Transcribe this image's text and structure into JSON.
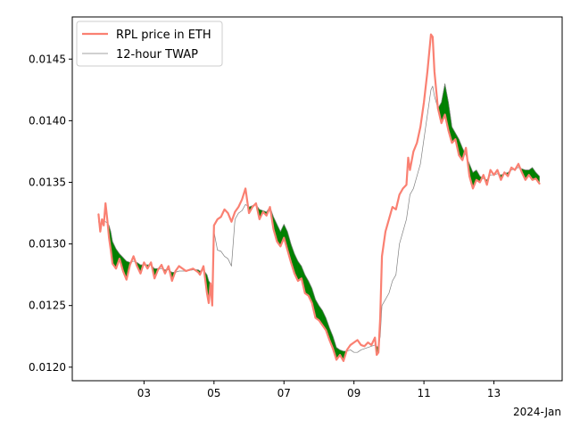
{
  "chart_data": {
    "type": "line",
    "title": "",
    "xlabel": "",
    "ylabel": "",
    "x_offset_label": "2024-Jan",
    "x_domain_days": [
      1.7,
      14.3
    ],
    "xlim_days": [
      0.95,
      14.95
    ],
    "ylim": [
      0.01189,
      0.014842
    ],
    "grid": false,
    "legend_position": "upper left",
    "x_ticks": [
      {
        "day": 3,
        "label": "03"
      },
      {
        "day": 5,
        "label": "05"
      },
      {
        "day": 7,
        "label": "07"
      },
      {
        "day": 9,
        "label": "09"
      },
      {
        "day": 11,
        "label": "11"
      },
      {
        "day": 13,
        "label": "13"
      }
    ],
    "y_ticks": [
      {
        "value": 0.012,
        "label": "0.0120"
      },
      {
        "value": 0.0125,
        "label": "0.0125"
      },
      {
        "value": 0.013,
        "label": "0.0130"
      },
      {
        "value": 0.0135,
        "label": "0.0135"
      },
      {
        "value": 0.014,
        "label": "0.0140"
      },
      {
        "value": 0.0145,
        "label": "0.0145"
      }
    ],
    "fill_color": "#008000",
    "series": [
      {
        "name": "RPL price in ETH",
        "color": "#fa8072",
        "width": 2.2,
        "points": [
          [
            1.7,
            0.01324
          ],
          [
            1.75,
            0.0131
          ],
          [
            1.8,
            0.0132
          ],
          [
            1.85,
            0.01315
          ],
          [
            1.9,
            0.01333
          ],
          [
            1.95,
            0.0132
          ],
          [
            2.0,
            0.01305
          ],
          [
            2.05,
            0.01295
          ],
          [
            2.1,
            0.01284
          ],
          [
            2.2,
            0.0128
          ],
          [
            2.3,
            0.01288
          ],
          [
            2.4,
            0.01278
          ],
          [
            2.5,
            0.01271
          ],
          [
            2.6,
            0.01283
          ],
          [
            2.7,
            0.0129
          ],
          [
            2.8,
            0.01282
          ],
          [
            2.9,
            0.01276
          ],
          [
            3.0,
            0.01285
          ],
          [
            3.1,
            0.0128
          ],
          [
            3.2,
            0.01285
          ],
          [
            3.3,
            0.01272
          ],
          [
            3.4,
            0.01279
          ],
          [
            3.5,
            0.01283
          ],
          [
            3.6,
            0.01276
          ],
          [
            3.7,
            0.01282
          ],
          [
            3.8,
            0.0127
          ],
          [
            3.9,
            0.01278
          ],
          [
            4.0,
            0.01282
          ],
          [
            4.2,
            0.01278
          ],
          [
            4.4,
            0.0128
          ],
          [
            4.55,
            0.01277
          ],
          [
            4.6,
            0.01275
          ],
          [
            4.7,
            0.01282
          ],
          [
            4.8,
            0.0126
          ],
          [
            4.85,
            0.01252
          ],
          [
            4.9,
            0.01268
          ],
          [
            4.95,
            0.0125
          ],
          [
            5.0,
            0.01315
          ],
          [
            5.1,
            0.0132
          ],
          [
            5.2,
            0.01322
          ],
          [
            5.3,
            0.01328
          ],
          [
            5.4,
            0.01325
          ],
          [
            5.5,
            0.01318
          ],
          [
            5.6,
            0.01326
          ],
          [
            5.7,
            0.0133
          ],
          [
            5.8,
            0.01336
          ],
          [
            5.9,
            0.01345
          ],
          [
            6.0,
            0.01325
          ],
          [
            6.1,
            0.0133
          ],
          [
            6.2,
            0.01333
          ],
          [
            6.3,
            0.0132
          ],
          [
            6.4,
            0.01326
          ],
          [
            6.5,
            0.01323
          ],
          [
            6.6,
            0.0133
          ],
          [
            6.7,
            0.01312
          ],
          [
            6.8,
            0.01302
          ],
          [
            6.9,
            0.01298
          ],
          [
            7.0,
            0.01305
          ],
          [
            7.1,
            0.01295
          ],
          [
            7.2,
            0.01285
          ],
          [
            7.3,
            0.01276
          ],
          [
            7.4,
            0.0127
          ],
          [
            7.5,
            0.01272
          ],
          [
            7.6,
            0.0126
          ],
          [
            7.7,
            0.01258
          ],
          [
            7.8,
            0.01252
          ],
          [
            7.9,
            0.0124
          ],
          [
            8.0,
            0.01238
          ],
          [
            8.1,
            0.01234
          ],
          [
            8.2,
            0.0123
          ],
          [
            8.3,
            0.01222
          ],
          [
            8.4,
            0.01215
          ],
          [
            8.5,
            0.01206
          ],
          [
            8.6,
            0.0121
          ],
          [
            8.7,
            0.01205
          ],
          [
            8.8,
            0.01214
          ],
          [
            8.9,
            0.01218
          ],
          [
            9.0,
            0.0122
          ],
          [
            9.1,
            0.01222
          ],
          [
            9.2,
            0.01218
          ],
          [
            9.3,
            0.01217
          ],
          [
            9.4,
            0.0122
          ],
          [
            9.5,
            0.01218
          ],
          [
            9.6,
            0.01224
          ],
          [
            9.65,
            0.0121
          ],
          [
            9.7,
            0.01212
          ],
          [
            9.75,
            0.0124
          ],
          [
            9.8,
            0.0129
          ],
          [
            9.9,
            0.0131
          ],
          [
            10.0,
            0.0132
          ],
          [
            10.1,
            0.0133
          ],
          [
            10.2,
            0.01328
          ],
          [
            10.3,
            0.0134
          ],
          [
            10.4,
            0.01345
          ],
          [
            10.5,
            0.01348
          ],
          [
            10.55,
            0.0137
          ],
          [
            10.6,
            0.0136
          ],
          [
            10.7,
            0.01375
          ],
          [
            10.8,
            0.01382
          ],
          [
            10.9,
            0.01395
          ],
          [
            11.0,
            0.01415
          ],
          [
            11.1,
            0.0144
          ],
          [
            11.2,
            0.0147
          ],
          [
            11.25,
            0.01468
          ],
          [
            11.3,
            0.0144
          ],
          [
            11.4,
            0.0141
          ],
          [
            11.5,
            0.01398
          ],
          [
            11.6,
            0.01405
          ],
          [
            11.7,
            0.01392
          ],
          [
            11.8,
            0.01382
          ],
          [
            11.9,
            0.01385
          ],
          [
            12.0,
            0.01372
          ],
          [
            12.1,
            0.01368
          ],
          [
            12.2,
            0.01378
          ],
          [
            12.3,
            0.01355
          ],
          [
            12.4,
            0.01345
          ],
          [
            12.5,
            0.01352
          ],
          [
            12.6,
            0.0135
          ],
          [
            12.7,
            0.01356
          ],
          [
            12.8,
            0.01348
          ],
          [
            12.9,
            0.0136
          ],
          [
            13.0,
            0.01356
          ],
          [
            13.1,
            0.0136
          ],
          [
            13.2,
            0.01352
          ],
          [
            13.3,
            0.01358
          ],
          [
            13.4,
            0.01355
          ],
          [
            13.5,
            0.01362
          ],
          [
            13.6,
            0.0136
          ],
          [
            13.7,
            0.01365
          ],
          [
            13.8,
            0.01358
          ],
          [
            13.9,
            0.01352
          ],
          [
            14.0,
            0.01356
          ],
          [
            14.1,
            0.01352
          ],
          [
            14.2,
            0.01353
          ],
          [
            14.3,
            0.01349
          ]
        ]
      },
      {
        "name": "12-hour TWAP",
        "color": "#808080",
        "width": 0.7,
        "points": [
          [
            1.7,
            0.01318
          ],
          [
            1.75,
            0.01315
          ],
          [
            1.8,
            0.01316
          ],
          [
            1.85,
            0.01318
          ],
          [
            1.9,
            0.01318
          ],
          [
            1.95,
            0.01317
          ],
          [
            2.0,
            0.01315
          ],
          [
            2.05,
            0.0131
          ],
          [
            2.1,
            0.01302
          ],
          [
            2.2,
            0.01296
          ],
          [
            2.3,
            0.01292
          ],
          [
            2.4,
            0.01289
          ],
          [
            2.5,
            0.01286
          ],
          [
            2.6,
            0.01285
          ],
          [
            2.7,
            0.01286
          ],
          [
            2.8,
            0.01285
          ],
          [
            2.9,
            0.01283
          ],
          [
            3.0,
            0.01283
          ],
          [
            3.1,
            0.01283
          ],
          [
            3.2,
            0.01283
          ],
          [
            3.3,
            0.0128
          ],
          [
            3.4,
            0.0128
          ],
          [
            3.5,
            0.0128
          ],
          [
            3.6,
            0.01279
          ],
          [
            3.7,
            0.01279
          ],
          [
            3.8,
            0.01277
          ],
          [
            3.9,
            0.01277
          ],
          [
            4.0,
            0.01278
          ],
          [
            4.2,
            0.01278
          ],
          [
            4.4,
            0.01279
          ],
          [
            4.55,
            0.01279
          ],
          [
            4.6,
            0.01278
          ],
          [
            4.7,
            0.01279
          ],
          [
            4.8,
            0.01275
          ],
          [
            4.85,
            0.0127
          ],
          [
            4.9,
            0.01268
          ],
          [
            4.95,
            0.01265
          ],
          [
            5.0,
            0.0131
          ],
          [
            5.1,
            0.01295
          ],
          [
            5.2,
            0.01294
          ],
          [
            5.3,
            0.0129
          ],
          [
            5.4,
            0.01288
          ],
          [
            5.5,
            0.01282
          ],
          [
            5.6,
            0.0132
          ],
          [
            5.7,
            0.01325
          ],
          [
            5.8,
            0.01327
          ],
          [
            5.9,
            0.01332
          ],
          [
            6.0,
            0.0133
          ],
          [
            6.1,
            0.01331
          ],
          [
            6.2,
            0.01332
          ],
          [
            6.3,
            0.01328
          ],
          [
            6.4,
            0.01327
          ],
          [
            6.5,
            0.01326
          ],
          [
            6.6,
            0.0133
          ],
          [
            6.7,
            0.01322
          ],
          [
            6.8,
            0.01316
          ],
          [
            6.9,
            0.0131
          ],
          [
            7.0,
            0.01316
          ],
          [
            7.1,
            0.0131
          ],
          [
            7.2,
            0.013
          ],
          [
            7.3,
            0.01292
          ],
          [
            7.4,
            0.01286
          ],
          [
            7.5,
            0.01282
          ],
          [
            7.6,
            0.01275
          ],
          [
            7.7,
            0.0127
          ],
          [
            7.8,
            0.01264
          ],
          [
            7.9,
            0.01255
          ],
          [
            8.0,
            0.0125
          ],
          [
            8.1,
            0.01246
          ],
          [
            8.2,
            0.0124
          ],
          [
            8.3,
            0.01232
          ],
          [
            8.4,
            0.01225
          ],
          [
            8.5,
            0.01216
          ],
          [
            8.6,
            0.01214
          ],
          [
            8.7,
            0.01213
          ],
          [
            8.8,
            0.01213
          ],
          [
            8.9,
            0.01214
          ],
          [
            9.0,
            0.01212
          ],
          [
            9.1,
            0.01212
          ],
          [
            9.2,
            0.01214
          ],
          [
            9.3,
            0.01215
          ],
          [
            9.4,
            0.01216
          ],
          [
            9.5,
            0.01217
          ],
          [
            9.6,
            0.01218
          ],
          [
            9.65,
            0.01217
          ],
          [
            9.7,
            0.01216
          ],
          [
            9.75,
            0.01225
          ],
          [
            9.8,
            0.0125
          ],
          [
            9.9,
            0.01255
          ],
          [
            10.0,
            0.0126
          ],
          [
            10.1,
            0.0127
          ],
          [
            10.2,
            0.01275
          ],
          [
            10.3,
            0.013
          ],
          [
            10.4,
            0.0131
          ],
          [
            10.5,
            0.0132
          ],
          [
            10.55,
            0.0133
          ],
          [
            10.6,
            0.0134
          ],
          [
            10.7,
            0.01345
          ],
          [
            10.8,
            0.01355
          ],
          [
            10.9,
            0.01365
          ],
          [
            11.0,
            0.01385
          ],
          [
            11.1,
            0.01405
          ],
          [
            11.2,
            0.01425
          ],
          [
            11.25,
            0.01428
          ],
          [
            11.3,
            0.0142
          ],
          [
            11.4,
            0.0141
          ],
          [
            11.5,
            0.01415
          ],
          [
            11.6,
            0.0143
          ],
          [
            11.7,
            0.01415
          ],
          [
            11.8,
            0.01395
          ],
          [
            11.9,
            0.0139
          ],
          [
            12.0,
            0.01385
          ],
          [
            12.1,
            0.01378
          ],
          [
            12.2,
            0.01372
          ],
          [
            12.3,
            0.01365
          ],
          [
            12.4,
            0.01358
          ],
          [
            12.5,
            0.0136
          ],
          [
            12.6,
            0.01355
          ],
          [
            12.7,
            0.01353
          ],
          [
            12.8,
            0.01352
          ],
          [
            12.9,
            0.01356
          ],
          [
            13.0,
            0.01356
          ],
          [
            13.1,
            0.01357
          ],
          [
            13.2,
            0.01356
          ],
          [
            13.3,
            0.01357
          ],
          [
            13.4,
            0.01358
          ],
          [
            13.5,
            0.0136
          ],
          [
            13.6,
            0.01361
          ],
          [
            13.7,
            0.01362
          ],
          [
            13.8,
            0.01361
          ],
          [
            13.9,
            0.0136
          ],
          [
            14.0,
            0.0136
          ],
          [
            14.1,
            0.01362
          ],
          [
            14.2,
            0.01358
          ],
          [
            14.3,
            0.01355
          ]
        ]
      }
    ]
  }
}
